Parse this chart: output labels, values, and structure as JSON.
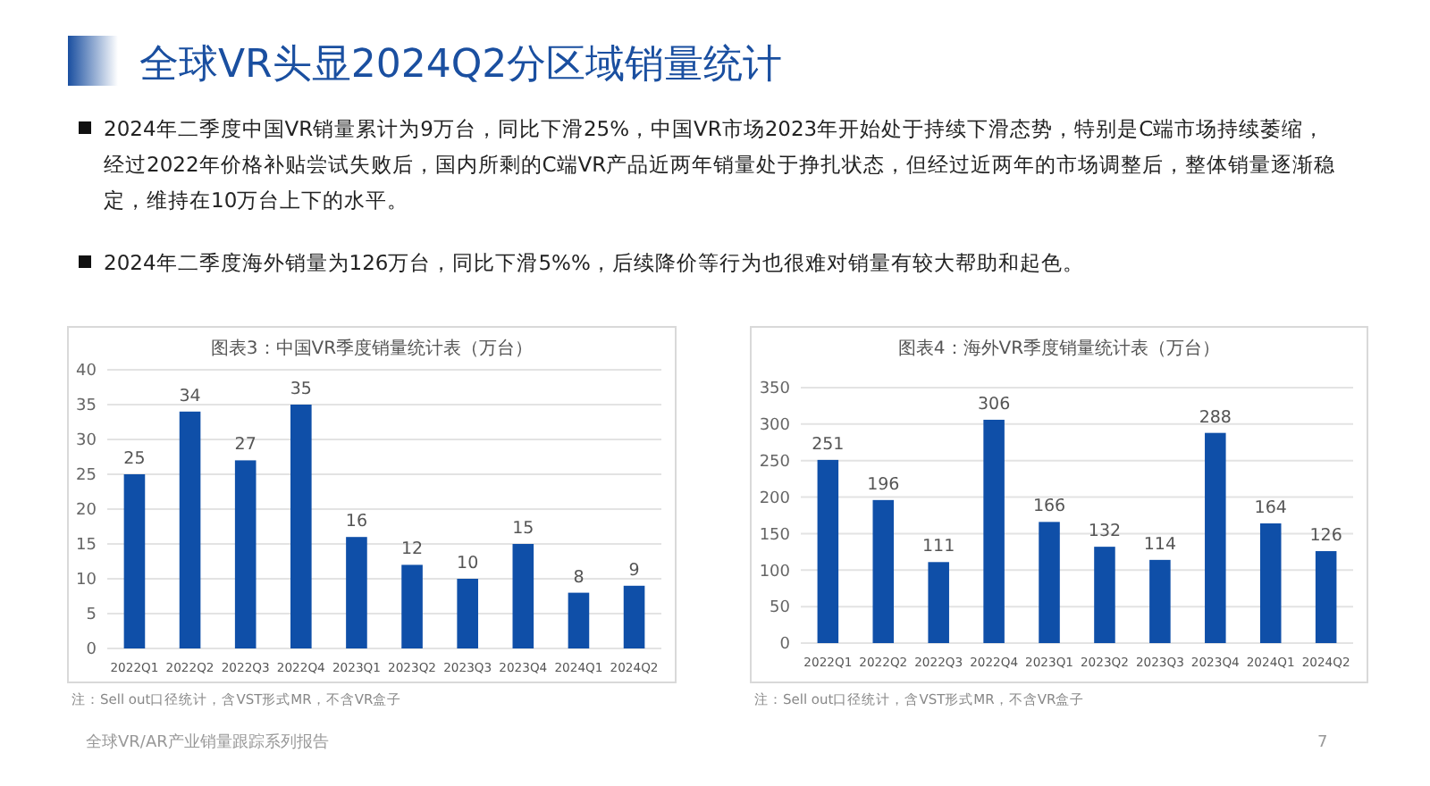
{
  "chart_data": [
    {
      "type": "other",
      "title": "全球VR头显2024Q2分区域销量统计",
      "annotations": [
        "2024年二季度中国VR销量累计为9万台，同比下滑25%，中国VR市场2023年开始处于持续下滑态势，特别是C端市场持续萎缩，经过2022年价格补贴尝试失败后，国内所剩的C端VR产品近两年销量处于挣扎状态，但经过近两年的市场调整后，整体销量逐渐稳定，维持在10万台上下的水平。",
        "2024年二季度海外销量为126万台，同比下滑5%%，后续降价等行为也很难对销量有较大帮助和起色。",
        "全球VR/AR产业销量跟踪系列报告",
        "7"
      ]
    },
    {
      "type": "bar",
      "title": "图表3：中国VR季度销量统计表（万台）",
      "categories": [
        "2022Q1",
        "2022Q2",
        "2022Q3",
        "2022Q4",
        "2023Q1",
        "2023Q2",
        "2023Q3",
        "2023Q4",
        "2024Q1",
        "2024Q2"
      ],
      "values": [
        25,
        34,
        27,
        35,
        16,
        12,
        10,
        15,
        8,
        9
      ],
      "color": "#0f4fa8",
      "ylim": [
        0,
        40
      ],
      "yticks": [
        0,
        5,
        10,
        15,
        20,
        25,
        30,
        35,
        40
      ],
      "grid": "y",
      "data_labels": true,
      "annotations": [
        "注：Sell out口径统计，含VST形式MR，不含VR盒子"
      ]
    },
    {
      "type": "bar",
      "title": "图表4：海外VR季度销量统计表（万台）",
      "categories": [
        "2022Q1",
        "2022Q2",
        "2022Q3",
        "2022Q4",
        "2023Q1",
        "2023Q2",
        "2023Q3",
        "2023Q4",
        "2024Q1",
        "2024Q2"
      ],
      "values": [
        251,
        196,
        111,
        306,
        166,
        132,
        114,
        288,
        164,
        126
      ],
      "color": "#0f4fa8",
      "ylim": [
        0,
        350
      ],
      "yticks": [
        0,
        50,
        100,
        150,
        200,
        250,
        300,
        350
      ],
      "grid": "y",
      "data_labels": true,
      "annotations": [
        "注：Sell out口径统计，含VST形式MR，不含VR盒子"
      ]
    }
  ]
}
